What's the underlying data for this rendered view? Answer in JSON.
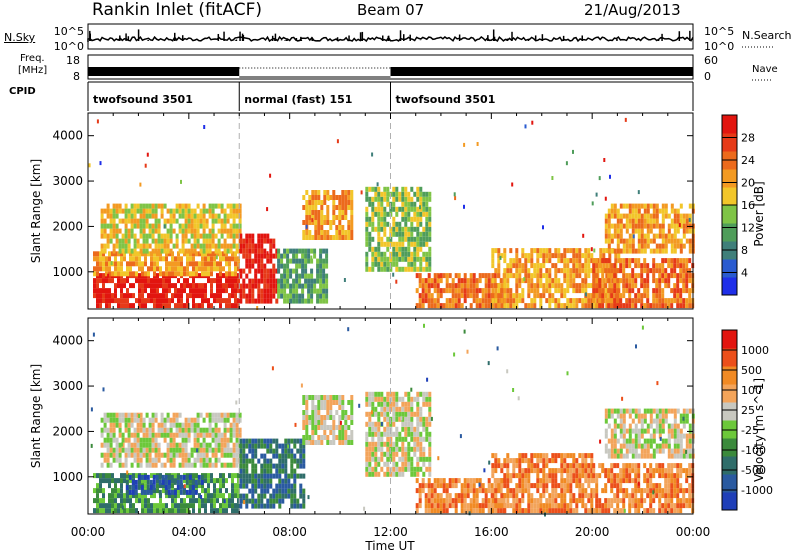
{
  "header": {
    "station": "Rankin Inlet (fitACF)",
    "beam": "Beam 07",
    "date": "21/Aug/2013"
  },
  "noise_panel": {
    "left_label": "N.Sky",
    "right_label": "N.Search",
    "ticks_left": [
      "10^5",
      "10^0"
    ],
    "ticks_right": [
      "10^5",
      "10^0"
    ]
  },
  "freq_panel": {
    "left_label_1": "Freq.",
    "left_label_2": "[MHz]",
    "right_label": "Nave",
    "ticks_left": [
      "18",
      "8"
    ],
    "ticks_right": [
      "60",
      "0"
    ]
  },
  "cpid_panel": {
    "label": "CPID",
    "segments": [
      {
        "name": "twofsound 3501",
        "start_hour": 0,
        "end_hour": 6
      },
      {
        "name": "normal (fast) 151",
        "start_hour": 6,
        "end_hour": 12
      },
      {
        "name": "twofsound 3501",
        "start_hour": 12,
        "end_hour": 24
      }
    ]
  },
  "x_axis": {
    "label": "Time UT",
    "ticks": [
      "00:00",
      "04:00",
      "08:00",
      "12:00",
      "16:00",
      "20:00",
      "00:00"
    ]
  },
  "chart_data": [
    {
      "type": "heatmap",
      "title": "",
      "ylabel": "Slant Range [km]",
      "xlabel": "",
      "x_range_hours": [
        0,
        24
      ],
      "ylim": [
        180,
        4500
      ],
      "yticks": [
        1000,
        2000,
        3000,
        4000
      ],
      "colorbar": {
        "label": "Power [dB]",
        "ticks": [
          "4",
          "8",
          "12",
          "16",
          "20",
          "24",
          "28"
        ],
        "colors": [
          "#1f2fe8",
          "#2a5bd0",
          "#3f7f7a",
          "#4f9d5a",
          "#7fc446",
          "#f2c62a",
          "#f39a22",
          "#ec6a1c",
          "#e63a18",
          "#e2150f"
        ]
      },
      "echo_regions": [
        {
          "t0": 0.2,
          "t1": 6.0,
          "r0": 200,
          "r1": 900,
          "level": 9
        },
        {
          "t0": 0.2,
          "t1": 6.0,
          "r0": 900,
          "r1": 1400,
          "level": 6
        },
        {
          "t0": 0.5,
          "t1": 6.0,
          "r0": 1400,
          "r1": 2500,
          "level": 5
        },
        {
          "t0": 6.0,
          "t1": 7.5,
          "r0": 300,
          "r1": 1800,
          "level": 9
        },
        {
          "t0": 7.5,
          "t1": 9.5,
          "r0": 300,
          "r1": 1500,
          "level": 3
        },
        {
          "t0": 8.5,
          "t1": 10.5,
          "r0": 1700,
          "r1": 2700,
          "level": 6
        },
        {
          "t0": 11.0,
          "t1": 13.5,
          "r0": 1000,
          "r1": 2800,
          "level": 4
        },
        {
          "t0": 13.0,
          "t1": 16.5,
          "r0": 200,
          "r1": 900,
          "level": 7
        },
        {
          "t0": 16.0,
          "t1": 21.0,
          "r0": 200,
          "r1": 1500,
          "level": 6
        },
        {
          "t0": 20.0,
          "t1": 24.0,
          "r0": 200,
          "r1": 1200,
          "level": 7
        },
        {
          "t0": 20.5,
          "t1": 24.0,
          "r0": 1400,
          "r1": 2500,
          "level": 6
        }
      ]
    },
    {
      "type": "heatmap",
      "title": "",
      "ylabel": "Slant Range [km]",
      "xlabel": "Time UT",
      "x_range_hours": [
        0,
        24
      ],
      "ylim": [
        180,
        4500
      ],
      "yticks": [
        1000,
        2000,
        3000,
        4000
      ],
      "colorbar": {
        "label": "Velocity [m s^-1]",
        "ticks": [
          "1000",
          "500",
          "100",
          "25",
          "-25",
          "-100",
          "-500",
          "-1000"
        ],
        "colors": [
          "#1f3fb8",
          "#2a5aa0",
          "#2f6d6a",
          "#3b8a3c",
          "#6cc83a",
          "#c8c8c0",
          "#f3a45a",
          "#f18a24",
          "#ec4f1a",
          "#e2150f"
        ]
      },
      "echo_regions": [
        {
          "t0": 0.2,
          "t1": 6.0,
          "r0": 200,
          "r1": 1000,
          "level": 3
        },
        {
          "t0": 0.5,
          "t1": 6.0,
          "r0": 1200,
          "r1": 2400,
          "level": 5
        },
        {
          "t0": 1.5,
          "t1": 4.5,
          "r0": 600,
          "r1": 1000,
          "level": 1
        },
        {
          "t0": 6.0,
          "t1": 8.5,
          "r0": 300,
          "r1": 1800,
          "level": 2
        },
        {
          "t0": 8.5,
          "t1": 10.5,
          "r0": 1700,
          "r1": 2700,
          "level": 5
        },
        {
          "t0": 11.0,
          "t1": 13.5,
          "r0": 1000,
          "r1": 2800,
          "level": 5
        },
        {
          "t0": 13.0,
          "t1": 16.5,
          "r0": 200,
          "r1": 900,
          "level": 7
        },
        {
          "t0": 16.0,
          "t1": 20.0,
          "r0": 200,
          "r1": 1500,
          "level": 7
        },
        {
          "t0": 20.0,
          "t1": 24.0,
          "r0": 200,
          "r1": 1200,
          "level": 7
        },
        {
          "t0": 20.5,
          "t1": 24.0,
          "r0": 1400,
          "r1": 2500,
          "level": 5
        }
      ]
    }
  ]
}
